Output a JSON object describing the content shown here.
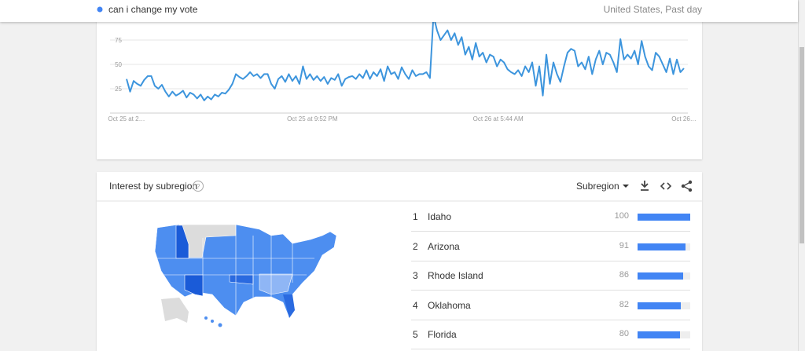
{
  "header": {
    "term": "can i change my vote",
    "region": "United States, Past day"
  },
  "chart_data": {
    "type": "line",
    "color": "#3d95dd",
    "values": [
      35,
      22,
      33,
      30,
      28,
      34,
      38,
      38,
      28,
      25,
      29,
      22,
      17,
      22,
      18,
      20,
      23,
      16,
      21,
      19,
      15,
      19,
      13,
      17,
      14,
      19,
      17,
      21,
      20,
      24,
      30,
      40,
      37,
      35,
      38,
      42,
      38,
      40,
      36,
      40,
      40,
      30,
      25,
      35,
      38,
      32,
      40,
      33,
      38,
      30,
      48,
      35,
      40,
      34,
      38,
      33,
      37,
      30,
      36,
      34,
      40,
      28,
      35,
      37,
      38,
      35,
      40,
      36,
      44,
      35,
      42,
      38,
      45,
      33,
      48,
      40,
      42,
      35,
      47,
      40,
      35,
      44,
      38,
      40,
      40,
      42,
      36,
      100,
      85,
      75,
      80,
      85,
      75,
      82,
      70,
      78,
      60,
      68,
      55,
      72,
      58,
      62,
      52,
      60,
      58,
      48,
      55,
      52,
      45,
      42,
      40,
      44,
      38,
      48,
      42,
      52,
      28,
      48,
      18,
      60,
      30,
      52,
      40,
      32,
      48,
      62,
      66,
      64,
      48,
      52,
      45,
      58,
      40,
      55,
      64,
      50,
      62,
      60,
      52,
      42,
      76,
      55,
      60,
      56,
      64,
      50,
      74,
      58,
      48,
      44,
      62,
      58,
      50,
      42,
      56,
      40,
      55,
      42,
      46
    ],
    "ylim": [
      0,
      100
    ],
    "yticks": [
      25,
      50,
      75
    ],
    "grid": true,
    "x_labels": [
      "Oct 25 at 2…",
      "Oct 25 at 9:52 PM",
      "Oct 26 at 5:44 AM",
      "Oct 26…"
    ]
  },
  "subregion": {
    "title": "Interest by subregion",
    "selector": "Subregion",
    "bar_color": "#4285f4",
    "rows": [
      {
        "rank": 1,
        "name": "Idaho",
        "value": 100
      },
      {
        "rank": 2,
        "name": "Arizona",
        "value": 91
      },
      {
        "rank": 3,
        "name": "Rhode Island",
        "value": 86
      },
      {
        "rank": 4,
        "name": "Oklahoma",
        "value": 82
      },
      {
        "rank": 5,
        "name": "Florida",
        "value": 80
      }
    ]
  }
}
